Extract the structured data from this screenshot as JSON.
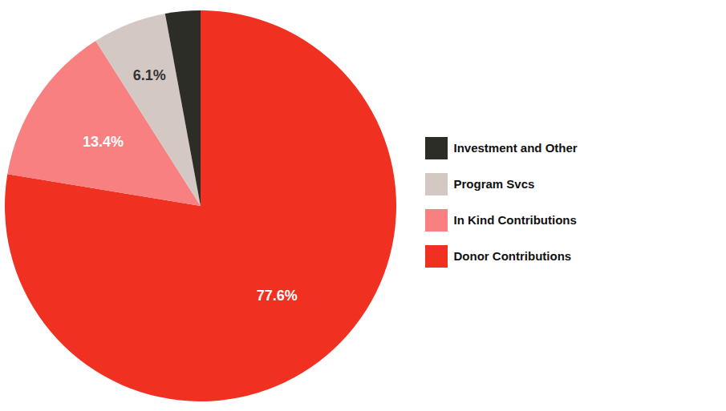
{
  "chart_data": {
    "type": "pie",
    "categories": [
      "Donor Contributions",
      "In Kind Contributions",
      "Program Svcs",
      "Investment and Other"
    ],
    "values": [
      77.6,
      13.4,
      6.1,
      2.9
    ],
    "colors": [
      "#f03020",
      "#f98080",
      "#d4c8c4",
      "#2d2d28"
    ],
    "data_labels": true,
    "value_labels": [
      "77.6%",
      "13.4%",
      "6.1%",
      null
    ],
    "legend": "right"
  }
}
